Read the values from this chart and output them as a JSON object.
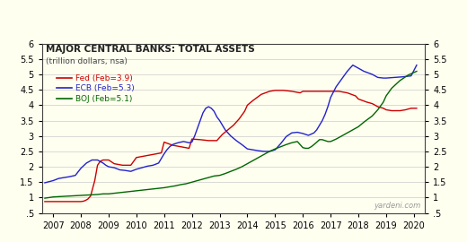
{
  "title": "MAJOR CENTRAL BANKS: TOTAL ASSETS",
  "subtitle": "(trillion dollars, nsa)",
  "background_color": "#FFFFF0",
  "ylim": [
    0.5,
    6.0
  ],
  "yticks": [
    0.5,
    1.0,
    1.5,
    2.0,
    2.5,
    3.0,
    3.5,
    4.0,
    4.5,
    5.0,
    5.5,
    6.0
  ],
  "xlim_start": 2006.6,
  "xlim_end": 2020.4,
  "xtick_labels": [
    "2007",
    "2008",
    "2009",
    "2010",
    "2011",
    "2012",
    "2013",
    "2014",
    "2015",
    "2016",
    "2017",
    "2018",
    "2019",
    "2020"
  ],
  "xtick_positions": [
    2007,
    2008,
    2009,
    2010,
    2011,
    2012,
    2013,
    2014,
    2015,
    2016,
    2017,
    2018,
    2019,
    2020
  ],
  "watermark": "yardeni.com",
  "legend": [
    {
      "label": "Fed (Feb=3.9)",
      "color": "#cc0000"
    },
    {
      "label": "ECB (Feb=5.3)",
      "color": "#2222cc"
    },
    {
      "label": "BOJ (Feb=5.1)",
      "color": "#006600"
    }
  ],
  "fed_x": [
    2006.7,
    2007.0,
    2007.2,
    2007.4,
    2007.6,
    2007.8,
    2008.0,
    2008.08,
    2008.15,
    2008.25,
    2008.35,
    2008.5,
    2008.6,
    2008.7,
    2008.8,
    2008.9,
    2009.0,
    2009.2,
    2009.5,
    2009.8,
    2010.0,
    2010.3,
    2010.6,
    2010.9,
    2011.0,
    2011.3,
    2011.6,
    2011.9,
    2012.0,
    2012.3,
    2012.6,
    2012.9,
    2013.0,
    2013.1,
    2013.3,
    2013.5,
    2013.7,
    2013.9,
    2014.0,
    2014.2,
    2014.5,
    2014.8,
    2015.0,
    2015.3,
    2015.6,
    2015.9,
    2016.0,
    2016.3,
    2016.6,
    2016.9,
    2017.0,
    2017.3,
    2017.6,
    2017.9,
    2018.0,
    2018.3,
    2018.5,
    2018.7,
    2018.9,
    2019.0,
    2019.2,
    2019.5,
    2019.7,
    2019.9,
    2020.1
  ],
  "fed_y": [
    0.87,
    0.87,
    0.87,
    0.87,
    0.87,
    0.87,
    0.87,
    0.88,
    0.9,
    0.95,
    1.05,
    1.55,
    2.05,
    2.18,
    2.22,
    2.22,
    2.22,
    2.1,
    2.05,
    2.05,
    2.3,
    2.35,
    2.4,
    2.45,
    2.8,
    2.7,
    2.65,
    2.6,
    2.9,
    2.88,
    2.85,
    2.85,
    2.95,
    3.05,
    3.2,
    3.35,
    3.55,
    3.8,
    4.0,
    4.15,
    4.35,
    4.45,
    4.48,
    4.48,
    4.45,
    4.4,
    4.45,
    4.45,
    4.45,
    4.45,
    4.45,
    4.45,
    4.4,
    4.3,
    4.2,
    4.1,
    4.05,
    3.95,
    3.9,
    3.85,
    3.82,
    3.82,
    3.85,
    3.9,
    3.9
  ],
  "ecb_x": [
    2006.7,
    2007.0,
    2007.2,
    2007.4,
    2007.6,
    2007.8,
    2008.0,
    2008.2,
    2008.4,
    2008.6,
    2008.8,
    2008.9,
    2009.0,
    2009.2,
    2009.4,
    2009.6,
    2009.8,
    2010.0,
    2010.2,
    2010.4,
    2010.6,
    2010.8,
    2011.0,
    2011.1,
    2011.2,
    2011.3,
    2011.4,
    2011.5,
    2011.6,
    2011.7,
    2011.8,
    2011.9,
    2012.0,
    2012.1,
    2012.2,
    2012.3,
    2012.4,
    2012.5,
    2012.6,
    2012.7,
    2012.8,
    2012.9,
    2013.0,
    2013.2,
    2013.4,
    2013.6,
    2013.8,
    2014.0,
    2014.2,
    2014.4,
    2014.6,
    2014.8,
    2015.0,
    2015.2,
    2015.4,
    2015.6,
    2015.8,
    2016.0,
    2016.2,
    2016.4,
    2016.5,
    2016.6,
    2016.7,
    2016.8,
    2016.9,
    2017.0,
    2017.2,
    2017.4,
    2017.6,
    2017.8,
    2018.0,
    2018.2,
    2018.5,
    2018.7,
    2018.9,
    2019.0,
    2019.3,
    2019.6,
    2019.9,
    2020.1
  ],
  "ecb_y": [
    1.48,
    1.55,
    1.62,
    1.65,
    1.68,
    1.72,
    1.95,
    2.12,
    2.22,
    2.22,
    2.12,
    2.05,
    2.0,
    1.97,
    1.9,
    1.88,
    1.85,
    1.92,
    1.97,
    2.02,
    2.05,
    2.12,
    2.42,
    2.55,
    2.65,
    2.72,
    2.75,
    2.78,
    2.8,
    2.82,
    2.8,
    2.78,
    2.8,
    3.0,
    3.25,
    3.5,
    3.75,
    3.9,
    3.95,
    3.9,
    3.8,
    3.62,
    3.5,
    3.2,
    3.0,
    2.85,
    2.72,
    2.58,
    2.55,
    2.52,
    2.5,
    2.5,
    2.55,
    2.75,
    2.98,
    3.1,
    3.12,
    3.08,
    3.02,
    3.1,
    3.2,
    3.35,
    3.5,
    3.7,
    3.95,
    4.25,
    4.6,
    4.85,
    5.1,
    5.3,
    5.2,
    5.1,
    5.0,
    4.9,
    4.88,
    4.88,
    4.9,
    4.92,
    4.95,
    5.3
  ],
  "boj_x": [
    2006.7,
    2007.0,
    2007.2,
    2007.4,
    2007.6,
    2007.8,
    2008.0,
    2008.2,
    2008.4,
    2008.6,
    2008.8,
    2009.0,
    2009.2,
    2009.4,
    2009.6,
    2009.8,
    2010.0,
    2010.2,
    2010.4,
    2010.6,
    2010.8,
    2011.0,
    2011.2,
    2011.4,
    2011.6,
    2011.8,
    2012.0,
    2012.2,
    2012.4,
    2012.6,
    2012.8,
    2013.0,
    2013.2,
    2013.4,
    2013.6,
    2013.8,
    2014.0,
    2014.2,
    2014.4,
    2014.6,
    2014.8,
    2015.0,
    2015.2,
    2015.4,
    2015.6,
    2015.8,
    2016.0,
    2016.1,
    2016.2,
    2016.3,
    2016.4,
    2016.5,
    2016.6,
    2016.7,
    2016.8,
    2016.9,
    2017.0,
    2017.2,
    2017.4,
    2017.6,
    2017.8,
    2018.0,
    2018.2,
    2018.5,
    2018.7,
    2018.9,
    2019.0,
    2019.2,
    2019.5,
    2019.8,
    2020.1
  ],
  "boj_y": [
    0.98,
    1.02,
    1.03,
    1.04,
    1.05,
    1.06,
    1.07,
    1.08,
    1.09,
    1.1,
    1.12,
    1.12,
    1.14,
    1.16,
    1.18,
    1.2,
    1.22,
    1.24,
    1.26,
    1.28,
    1.3,
    1.32,
    1.35,
    1.38,
    1.42,
    1.45,
    1.5,
    1.55,
    1.6,
    1.65,
    1.7,
    1.72,
    1.78,
    1.85,
    1.92,
    2.0,
    2.1,
    2.2,
    2.3,
    2.4,
    2.5,
    2.58,
    2.65,
    2.72,
    2.78,
    2.82,
    2.62,
    2.6,
    2.6,
    2.65,
    2.72,
    2.8,
    2.88,
    2.88,
    2.85,
    2.82,
    2.82,
    2.9,
    3.0,
    3.1,
    3.2,
    3.3,
    3.45,
    3.65,
    3.85,
    4.1,
    4.3,
    4.55,
    4.8,
    4.98,
    5.1
  ]
}
